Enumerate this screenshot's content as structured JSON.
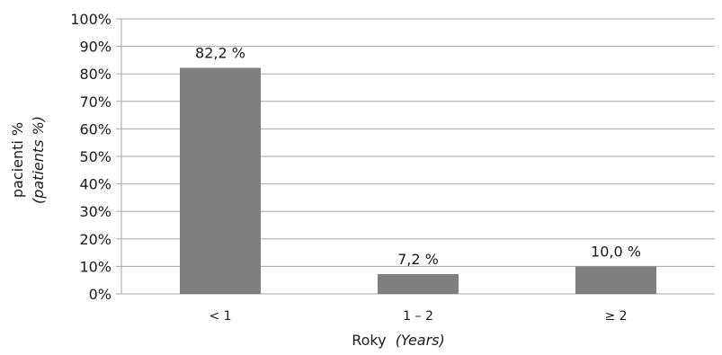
{
  "chart_data": {
    "type": "bar",
    "categories": [
      "< 1",
      "1 – 2",
      "≥ 2"
    ],
    "values": [
      82.2,
      7.2,
      10.0
    ],
    "data_labels": [
      "82,2 %",
      "7,2 %",
      "10,0 %"
    ],
    "ylim": [
      0,
      100
    ],
    "yticks": [
      0,
      10,
      20,
      30,
      40,
      50,
      60,
      70,
      80,
      90,
      100
    ],
    "ytick_labels": [
      "0%",
      "10%",
      "20%",
      "30%",
      "40%",
      "50%",
      "60%",
      "70%",
      "80%",
      "90%",
      "100%"
    ],
    "ylabel": "pacienti %",
    "ylabel_italic": "(patients %)",
    "xlabel": "Roky",
    "xlabel_italic": "(Years)",
    "grid": true,
    "bar_color": "#7f7f7f",
    "grid_color": "#a6a6a6"
  }
}
